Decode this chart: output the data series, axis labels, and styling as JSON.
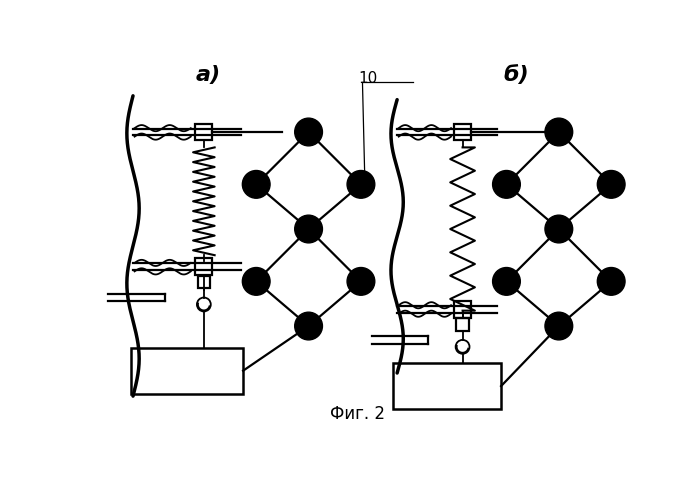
{
  "fig_width": 6.99,
  "fig_height": 4.84,
  "dpi": 100,
  "bg_color": "#ffffff",
  "caption": "Фиг. 2",
  "label_a": "а)",
  "label_b": "б)",
  "annotation_10": "10",
  "lw": 1.3,
  "plw": 2.0,
  "node_r": 0.23,
  "node_color": "black",
  "spring_lw": 1.5
}
